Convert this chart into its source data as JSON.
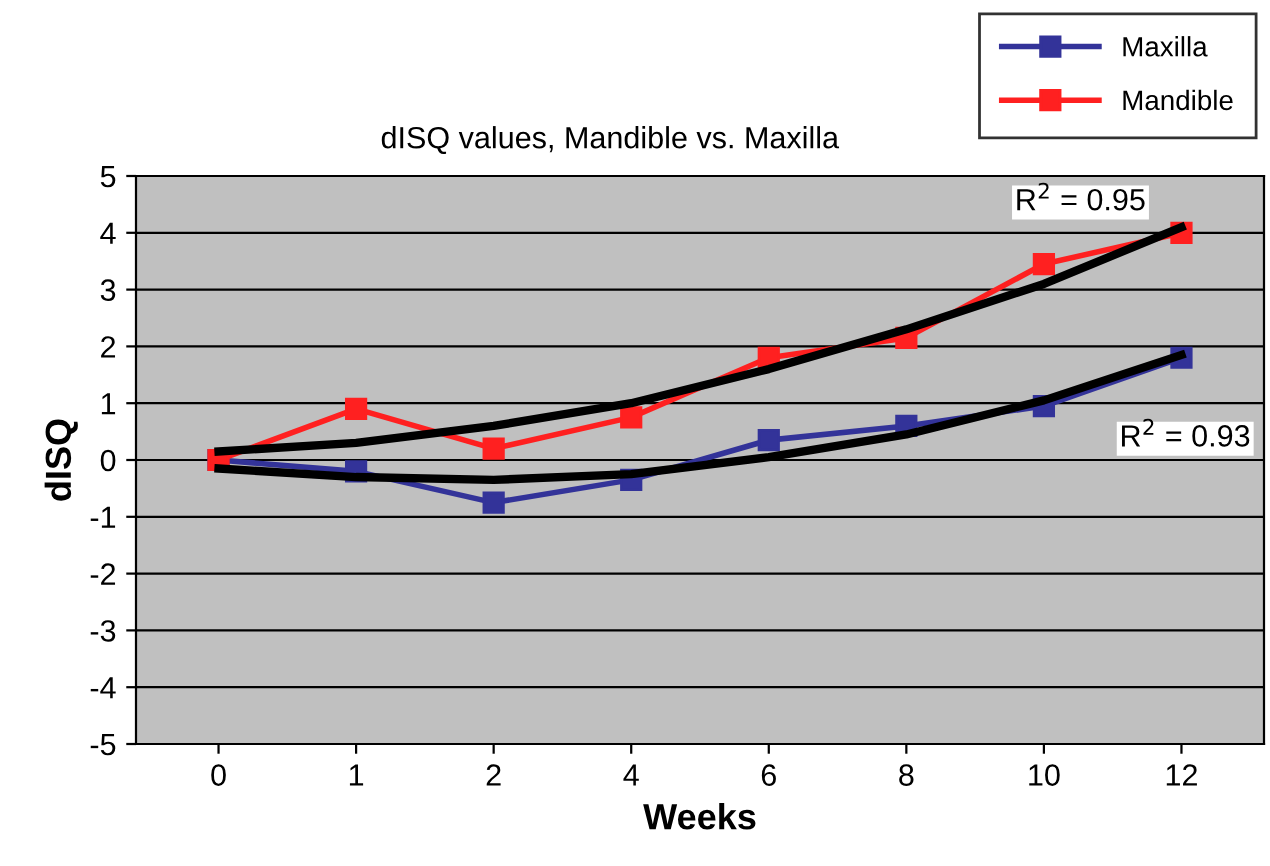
{
  "chart_data": {
    "type": "line",
    "title": "dISQ values, Mandible vs. Maxilla",
    "xlabel": "Weeks",
    "ylabel": "dISQ",
    "categories": [
      "0",
      "1",
      "2",
      "4",
      "6",
      "8",
      "10",
      "12"
    ],
    "series": [
      {
        "name": "Maxilla",
        "color": "#333399",
        "values": [
          0,
          -0.2,
          -0.75,
          -0.35,
          0.35,
          0.6,
          0.95,
          1.8
        ],
        "marker": "square"
      },
      {
        "name": "Mandible",
        "color": "#ff2020",
        "values": [
          0,
          0.9,
          0.2,
          0.75,
          1.8,
          2.15,
          3.45,
          4.0
        ],
        "marker": "square"
      },
      {
        "type": "line",
        "color": "#000000",
        "values": [
          0.15,
          0.3,
          0.6,
          1.0,
          1.6,
          2.3,
          3.1,
          4.1
        ],
        "marker": "none"
      },
      {
        "type": "line",
        "color": "#000000",
        "values": [
          -0.15,
          -0.3,
          -0.35,
          -0.25,
          0.05,
          0.45,
          1.05,
          1.85
        ],
        "marker": "none"
      }
    ],
    "annotations": [
      {
        "text": "R$^{2}$ = 0.95",
        "x": "12",
        "y": 4.1
      },
      {
        "text": "R$^{2}$ = 0.93",
        "x": "12",
        "y": 1.8
      }
    ],
    "ylim": [
      -5,
      5
    ],
    "yticks": [
      -5,
      -4,
      -3,
      -2,
      -1,
      0,
      1,
      2,
      3,
      4,
      5
    ],
    "grid": "y",
    "legend": "top right"
  }
}
